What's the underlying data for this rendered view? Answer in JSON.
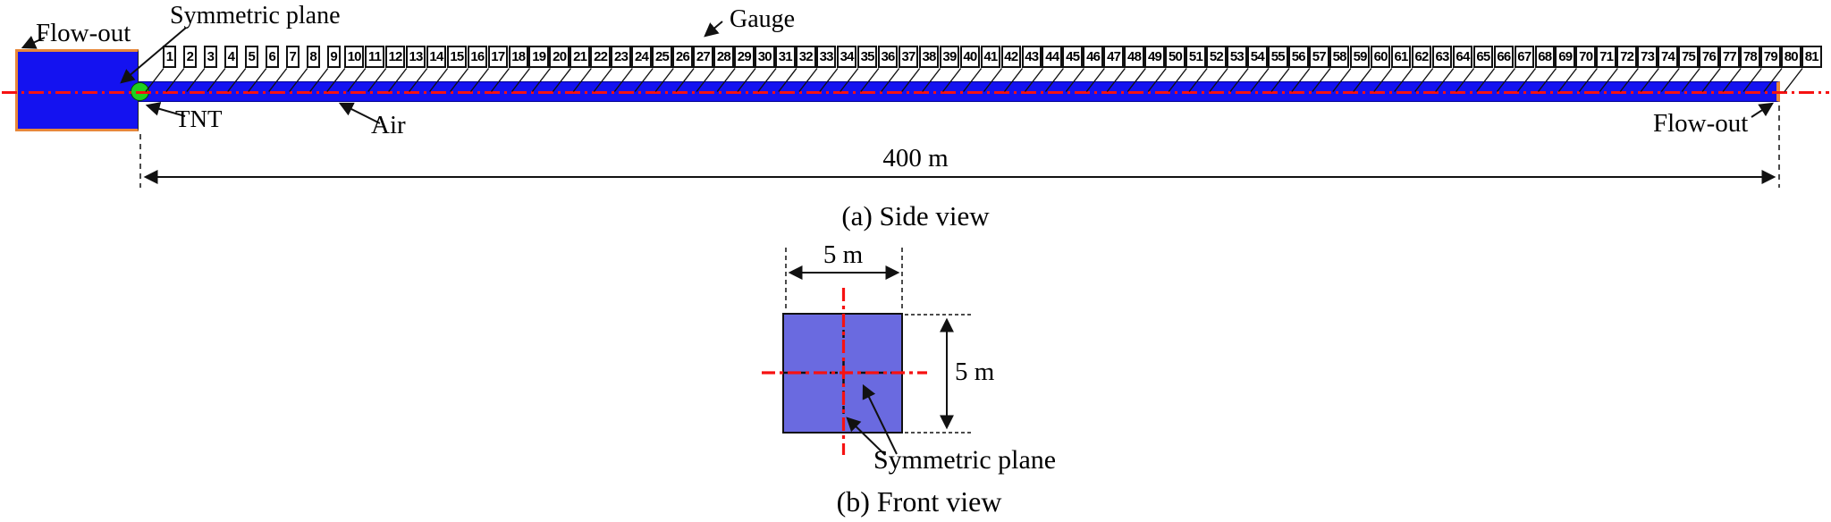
{
  "figure": {
    "side_view": {
      "caption": "(a) Side view",
      "labels": {
        "flow_out_left": "Flow-out",
        "symmetric_plane": "Symmetric plane",
        "gauge": "Gauge",
        "tnt": "TNT",
        "air": "Air",
        "flow_out_right": "Flow-out",
        "length_dimension": "400 m"
      },
      "gauges": {
        "count": 81,
        "numbers": [
          1,
          2,
          3,
          4,
          5,
          6,
          7,
          8,
          9,
          10,
          11,
          12,
          13,
          14,
          15,
          16,
          17,
          18,
          19,
          20,
          21,
          22,
          23,
          24,
          25,
          26,
          27,
          28,
          29,
          30,
          31,
          32,
          33,
          34,
          35,
          36,
          37,
          38,
          39,
          40,
          41,
          42,
          43,
          44,
          45,
          46,
          47,
          48,
          49,
          50,
          51,
          52,
          53,
          54,
          55,
          56,
          57,
          58,
          59,
          60,
          61,
          62,
          63,
          64,
          65,
          66,
          67,
          68,
          69,
          70,
          71,
          72,
          73,
          74,
          75,
          76,
          77,
          78,
          79,
          80,
          81
        ]
      }
    },
    "front_view": {
      "caption": "(b) Front view",
      "labels": {
        "width_dimension": "5 m",
        "height_dimension": "5 m",
        "symmetric_plane": "Symmetric plane"
      }
    },
    "colors": {
      "domain_blue": "#1412f0",
      "cross_section_blue": "#6a6ae0",
      "flow_out_orange": "#e8883a",
      "centerline_red": "#f61212",
      "tnt_green": "#1fd11f"
    }
  }
}
